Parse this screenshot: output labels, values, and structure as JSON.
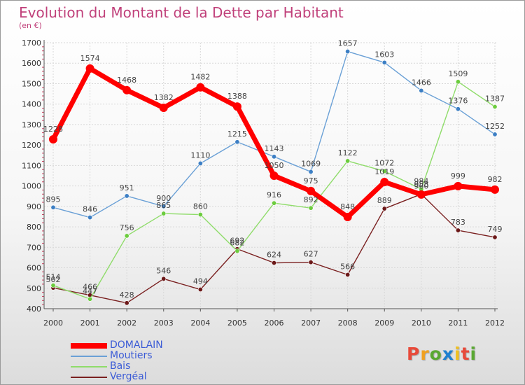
{
  "title": "Evolution du Montant de la Dette par Habitant",
  "subtitle": "(en €)",
  "brand": {
    "letters": [
      "P",
      "r",
      "o",
      "x",
      "i",
      "t",
      "i"
    ],
    "colors": [
      "#e84a3a",
      "#f0a020",
      "#5aa832",
      "#1e7fd0",
      "#f0c020",
      "#e84a3a",
      "#5aa832"
    ]
  },
  "chart_data": {
    "type": "line",
    "title": "Evolution du Montant de la Dette par Habitant",
    "ylabel": "(en €)",
    "xlabel": "",
    "x": [
      "2000",
      "2001",
      "2002",
      "2003",
      "2004",
      "2005",
      "2006",
      "2007",
      "2008",
      "2009",
      "2010",
      "2011",
      "2012"
    ],
    "ylim": [
      400,
      1700
    ],
    "yticks": [
      400,
      500,
      600,
      700,
      800,
      900,
      1000,
      1100,
      1200,
      1300,
      1400,
      1500,
      1600,
      1700
    ],
    "grid": true,
    "legend": "bottom-left",
    "series": [
      {
        "name": "Vergéal",
        "color": "#7a2020",
        "marker": "#6b1818",
        "values": [
          502,
          466,
          428,
          546,
          494,
          692,
          624,
          627,
          566,
          889,
          960,
          783,
          749
        ]
      },
      {
        "name": "Bais",
        "color": "#8fdc6a",
        "marker": "#6ccc3e",
        "values": [
          514,
          447,
          756,
          865,
          860,
          682,
          916,
          892,
          1122,
          1072,
          984,
          1509,
          1387
        ]
      },
      {
        "name": "Moutiers",
        "color": "#6aa0d6",
        "marker": "#3d7fc4",
        "values": [
          895,
          846,
          951,
          900,
          1110,
          1215,
          1143,
          1069,
          1657,
          1603,
          1466,
          1376,
          1252
        ]
      },
      {
        "name": "DOMALAIN",
        "color": "#ff0000",
        "marker": "#ff0000",
        "values": [
          1228,
          1574,
          1468,
          1382,
          1482,
          1388,
          1050,
          975,
          848,
          1019,
          958,
          999,
          982
        ]
      }
    ]
  }
}
